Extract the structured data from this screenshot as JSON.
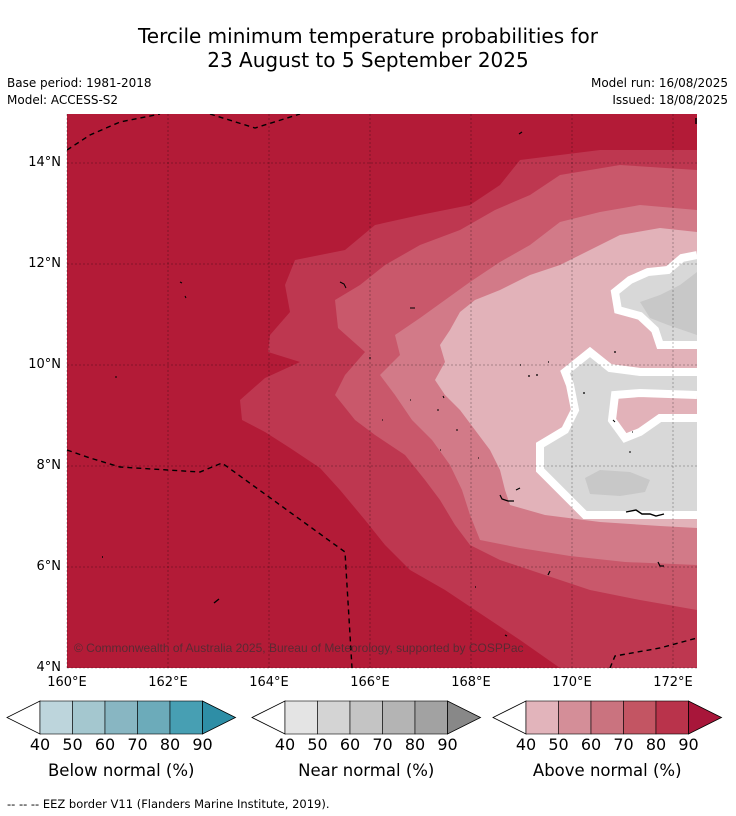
{
  "header": {
    "title_line1": "Tercile minimum temperature probabilities for",
    "title_line2": "23 August to 5 September 2025",
    "base_period": "Base period: 1981-2018",
    "model": "Model: ACCESS-S2",
    "model_run": "Model run: 16/08/2025",
    "issued": "Issued: 18/08/2025"
  },
  "map": {
    "lat_ticks": [
      "14°N",
      "12°N",
      "10°N",
      "8°N",
      "6°N",
      "4°N"
    ],
    "lon_ticks": [
      "160°E",
      "162°E",
      "164°E",
      "166°E",
      "168°E",
      "170°E",
      "172°E"
    ],
    "copyright": "© Commonwealth of Australia 2025, Bureau of Meteorology, supported by COSPPac",
    "colors": {
      "above_90": "#b31b37",
      "above_80": "#be3750",
      "above_70": "#c9586b",
      "above_60": "#d27a88",
      "above_50": "#e2b2b9",
      "near_60": "#c8c8c8",
      "near_50": "#d8d8d8"
    }
  },
  "colorbars": [
    {
      "label": "Below normal (%)",
      "ticks": [
        "40",
        "50",
        "60",
        "70",
        "80",
        "90"
      ],
      "colors": [
        "#ffffff",
        "#bdd5dc",
        "#a4c7cf",
        "#88b6c2",
        "#6cabba",
        "#479fb3",
        "#2e8ea6"
      ]
    },
    {
      "label": "Near normal (%)",
      "ticks": [
        "40",
        "50",
        "60",
        "70",
        "80",
        "90"
      ],
      "colors": [
        "#ffffff",
        "#e4e4e4",
        "#d4d4d4",
        "#c4c4c4",
        "#b4b4b4",
        "#a2a2a2",
        "#888888"
      ]
    },
    {
      "label": "Above normal (%)",
      "ticks": [
        "40",
        "50",
        "60",
        "70",
        "80",
        "90"
      ],
      "colors": [
        "#ffffff",
        "#e2b4bb",
        "#d48e98",
        "#ca737f",
        "#c35563",
        "#b9334b",
        "#a8163a"
      ]
    }
  ],
  "footer": "-- -- -- EEZ border V11 (Flanders Marine Institute, 2019)."
}
